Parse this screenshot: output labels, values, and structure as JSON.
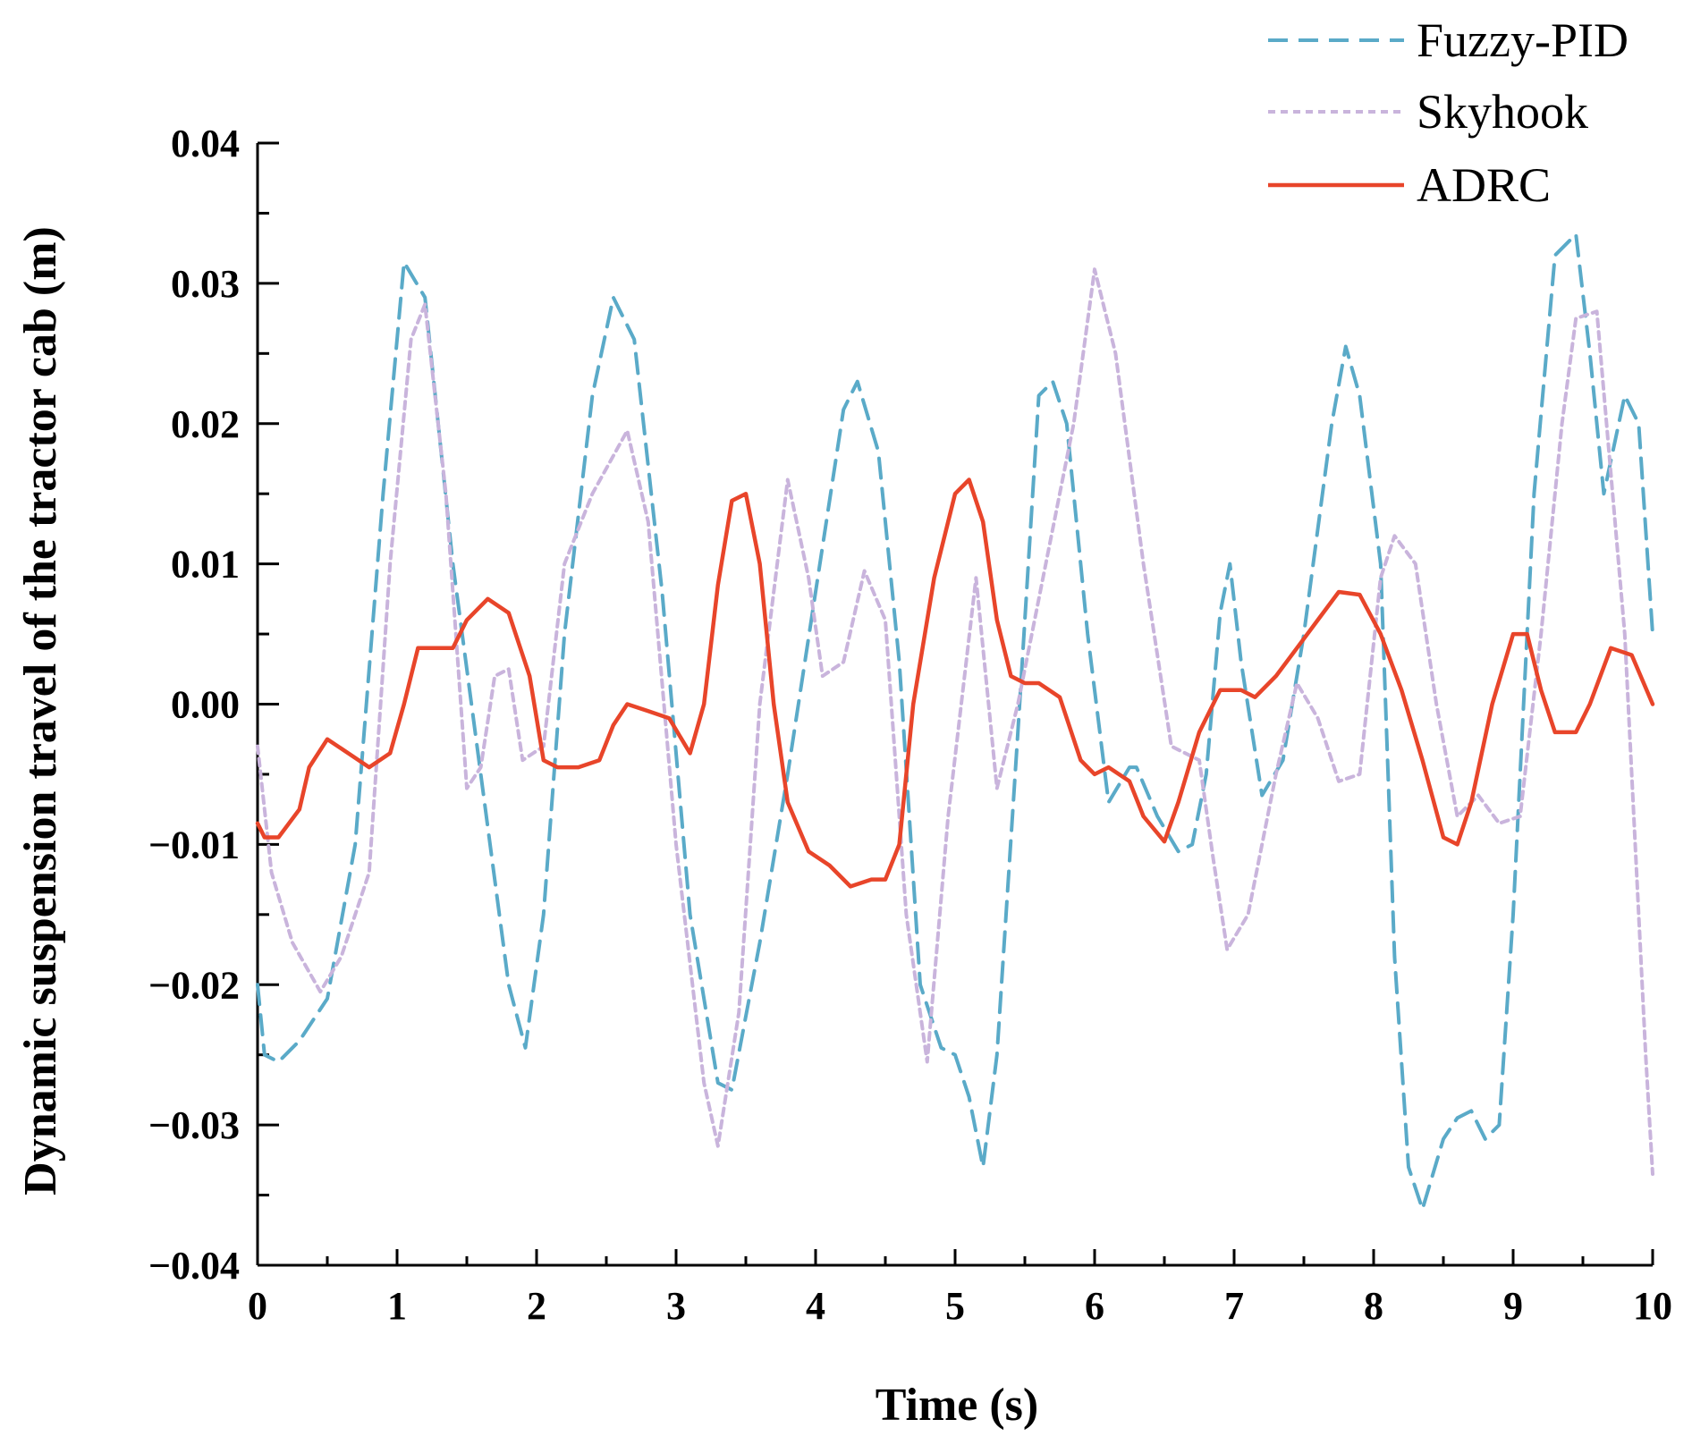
{
  "chart_data": {
    "type": "line",
    "xlabel": "Time (s)",
    "ylabel": "Dynamic suspension travel of the tractor cab (m)",
    "xlim": [
      0,
      10
    ],
    "ylim": [
      -0.04,
      0.04
    ],
    "x_ticks": [
      0,
      1,
      2,
      3,
      4,
      5,
      6,
      7,
      8,
      9,
      10
    ],
    "x_tick_labels": [
      "0",
      "1",
      "2",
      "3",
      "4",
      "5",
      "6",
      "7",
      "8",
      "9",
      "10"
    ],
    "y_ticks": [
      -0.04,
      -0.03,
      -0.02,
      -0.01,
      0.0,
      0.01,
      0.02,
      0.03,
      0.04
    ],
    "y_tick_labels": [
      "−0.04",
      "−0.03",
      "−0.02",
      "−0.01",
      "0.00",
      "0.01",
      "0.02",
      "0.03",
      "0.04"
    ],
    "grid": false,
    "legend_position": "top-right",
    "series": [
      {
        "name": "Fuzzy-PID",
        "color": "#5aaac8",
        "dash": "dashed",
        "x": [
          0,
          0.05,
          0.15,
          0.3,
          0.5,
          0.7,
          0.9,
          1.05,
          1.2,
          1.4,
          1.6,
          1.8,
          1.92,
          2.05,
          2.2,
          2.4,
          2.55,
          2.7,
          2.9,
          3.1,
          3.3,
          3.4,
          3.6,
          3.8,
          4.0,
          4.2,
          4.3,
          4.45,
          4.6,
          4.75,
          4.9,
          5.0,
          5.1,
          5.2,
          5.3,
          5.45,
          5.6,
          5.7,
          5.8,
          5.95,
          6.1,
          6.25,
          6.3,
          6.45,
          6.6,
          6.7,
          6.8,
          6.9,
          6.97,
          7.05,
          7.2,
          7.35,
          7.5,
          7.7,
          7.8,
          7.9,
          8.05,
          8.15,
          8.25,
          8.35,
          8.5,
          8.6,
          8.7,
          8.8,
          8.9,
          9.0,
          9.15,
          9.3,
          9.45,
          9.55,
          9.65,
          9.8,
          9.9,
          10.0
        ],
        "values": [
          -0.02,
          -0.025,
          -0.0255,
          -0.024,
          -0.021,
          -0.01,
          0.015,
          0.0315,
          0.029,
          0.01,
          -0.005,
          -0.02,
          -0.0245,
          -0.015,
          0.005,
          0.022,
          0.029,
          0.026,
          0.008,
          -0.015,
          -0.027,
          -0.0275,
          -0.017,
          -0.005,
          0.008,
          0.021,
          0.023,
          0.018,
          0.003,
          -0.02,
          -0.0245,
          -0.025,
          -0.028,
          -0.033,
          -0.025,
          -0.002,
          0.022,
          0.023,
          0.02,
          0.005,
          -0.007,
          -0.0045,
          -0.0045,
          -0.008,
          -0.0105,
          -0.01,
          -0.005,
          0.0065,
          0.01,
          0.003,
          -0.0065,
          -0.004,
          0.005,
          0.02,
          0.0255,
          0.022,
          0.01,
          -0.018,
          -0.033,
          -0.036,
          -0.031,
          -0.0295,
          -0.029,
          -0.031,
          -0.03,
          -0.015,
          0.015,
          0.032,
          0.0335,
          0.025,
          0.015,
          0.022,
          0.02,
          0.005
        ]
      },
      {
        "name": "Skyhook",
        "color": "#c9b4dc",
        "dash": "dotted",
        "x": [
          0,
          0.1,
          0.25,
          0.45,
          0.6,
          0.8,
          0.95,
          1.1,
          1.2,
          1.35,
          1.5,
          1.6,
          1.7,
          1.8,
          1.9,
          2.05,
          2.2,
          2.4,
          2.65,
          2.8,
          3.0,
          3.2,
          3.3,
          3.45,
          3.6,
          3.8,
          3.95,
          4.05,
          4.2,
          4.35,
          4.5,
          4.65,
          4.8,
          4.95,
          5.15,
          5.3,
          5.45,
          5.65,
          5.85,
          6.0,
          6.15,
          6.35,
          6.55,
          6.75,
          6.85,
          6.95,
          7.1,
          7.3,
          7.45,
          7.6,
          7.75,
          7.9,
          8.05,
          8.15,
          8.3,
          8.45,
          8.6,
          8.75,
          8.9,
          9.05,
          9.2,
          9.35,
          9.45,
          9.6,
          9.8,
          9.95,
          10.0
        ],
        "values": [
          -0.003,
          -0.012,
          -0.017,
          -0.0205,
          -0.018,
          -0.012,
          0.01,
          0.026,
          0.0285,
          0.015,
          -0.006,
          -0.0045,
          0.002,
          0.0025,
          -0.004,
          -0.003,
          0.01,
          0.015,
          0.0195,
          0.013,
          -0.01,
          -0.027,
          -0.0315,
          -0.022,
          0.0,
          0.016,
          0.009,
          0.002,
          0.003,
          0.0095,
          0.006,
          -0.015,
          -0.0255,
          -0.008,
          0.009,
          -0.006,
          0.0,
          0.01,
          0.02,
          0.031,
          0.025,
          0.01,
          -0.003,
          -0.004,
          -0.011,
          -0.0175,
          -0.015,
          -0.005,
          0.0015,
          -0.001,
          -0.0055,
          -0.005,
          0.009,
          0.012,
          0.01,
          0.0,
          -0.008,
          -0.0065,
          -0.0085,
          -0.008,
          0.005,
          0.02,
          0.0275,
          0.028,
          0.005,
          -0.025,
          -0.0335
        ]
      },
      {
        "name": "ADRC",
        "color": "#e8452a",
        "dash": "solid",
        "x": [
          0,
          0.05,
          0.15,
          0.3,
          0.37,
          0.5,
          0.65,
          0.8,
          0.95,
          1.05,
          1.15,
          1.25,
          1.4,
          1.5,
          1.65,
          1.8,
          1.95,
          2.05,
          2.15,
          2.3,
          2.45,
          2.55,
          2.65,
          2.8,
          2.95,
          3.1,
          3.2,
          3.3,
          3.4,
          3.5,
          3.6,
          3.7,
          3.8,
          3.95,
          4.1,
          4.25,
          4.4,
          4.5,
          4.6,
          4.7,
          4.85,
          5.0,
          5.1,
          5.2,
          5.3,
          5.4,
          5.5,
          5.6,
          5.75,
          5.9,
          6.0,
          6.1,
          6.25,
          6.35,
          6.5,
          6.6,
          6.75,
          6.9,
          7.05,
          7.15,
          7.3,
          7.45,
          7.6,
          7.75,
          7.9,
          8.05,
          8.2,
          8.35,
          8.5,
          8.6,
          8.7,
          8.85,
          9.0,
          9.1,
          9.2,
          9.3,
          9.45,
          9.55,
          9.7,
          9.85,
          10.0
        ],
        "values": [
          -0.0085,
          -0.0095,
          -0.0095,
          -0.0075,
          -0.0045,
          -0.0025,
          -0.0035,
          -0.0045,
          -0.0035,
          0.0,
          0.004,
          0.004,
          0.004,
          0.006,
          0.0075,
          0.0065,
          0.002,
          -0.004,
          -0.0045,
          -0.0045,
          -0.004,
          -0.0015,
          0.0,
          -0.0005,
          -0.001,
          -0.0035,
          0.0,
          0.0085,
          0.0145,
          0.015,
          0.01,
          0.0,
          -0.007,
          -0.0105,
          -0.0115,
          -0.013,
          -0.0125,
          -0.0125,
          -0.01,
          0.0,
          0.009,
          0.015,
          0.016,
          0.013,
          0.006,
          0.002,
          0.0015,
          0.0015,
          0.0005,
          -0.004,
          -0.005,
          -0.0045,
          -0.0055,
          -0.008,
          -0.0098,
          -0.007,
          -0.002,
          0.001,
          0.001,
          0.0005,
          0.002,
          0.004,
          0.006,
          0.008,
          0.0078,
          0.005,
          0.001,
          -0.004,
          -0.0095,
          -0.01,
          -0.007,
          0.0,
          0.005,
          0.005,
          0.001,
          -0.002,
          -0.002,
          0.0,
          0.004,
          0.0035,
          0.0
        ]
      }
    ]
  }
}
